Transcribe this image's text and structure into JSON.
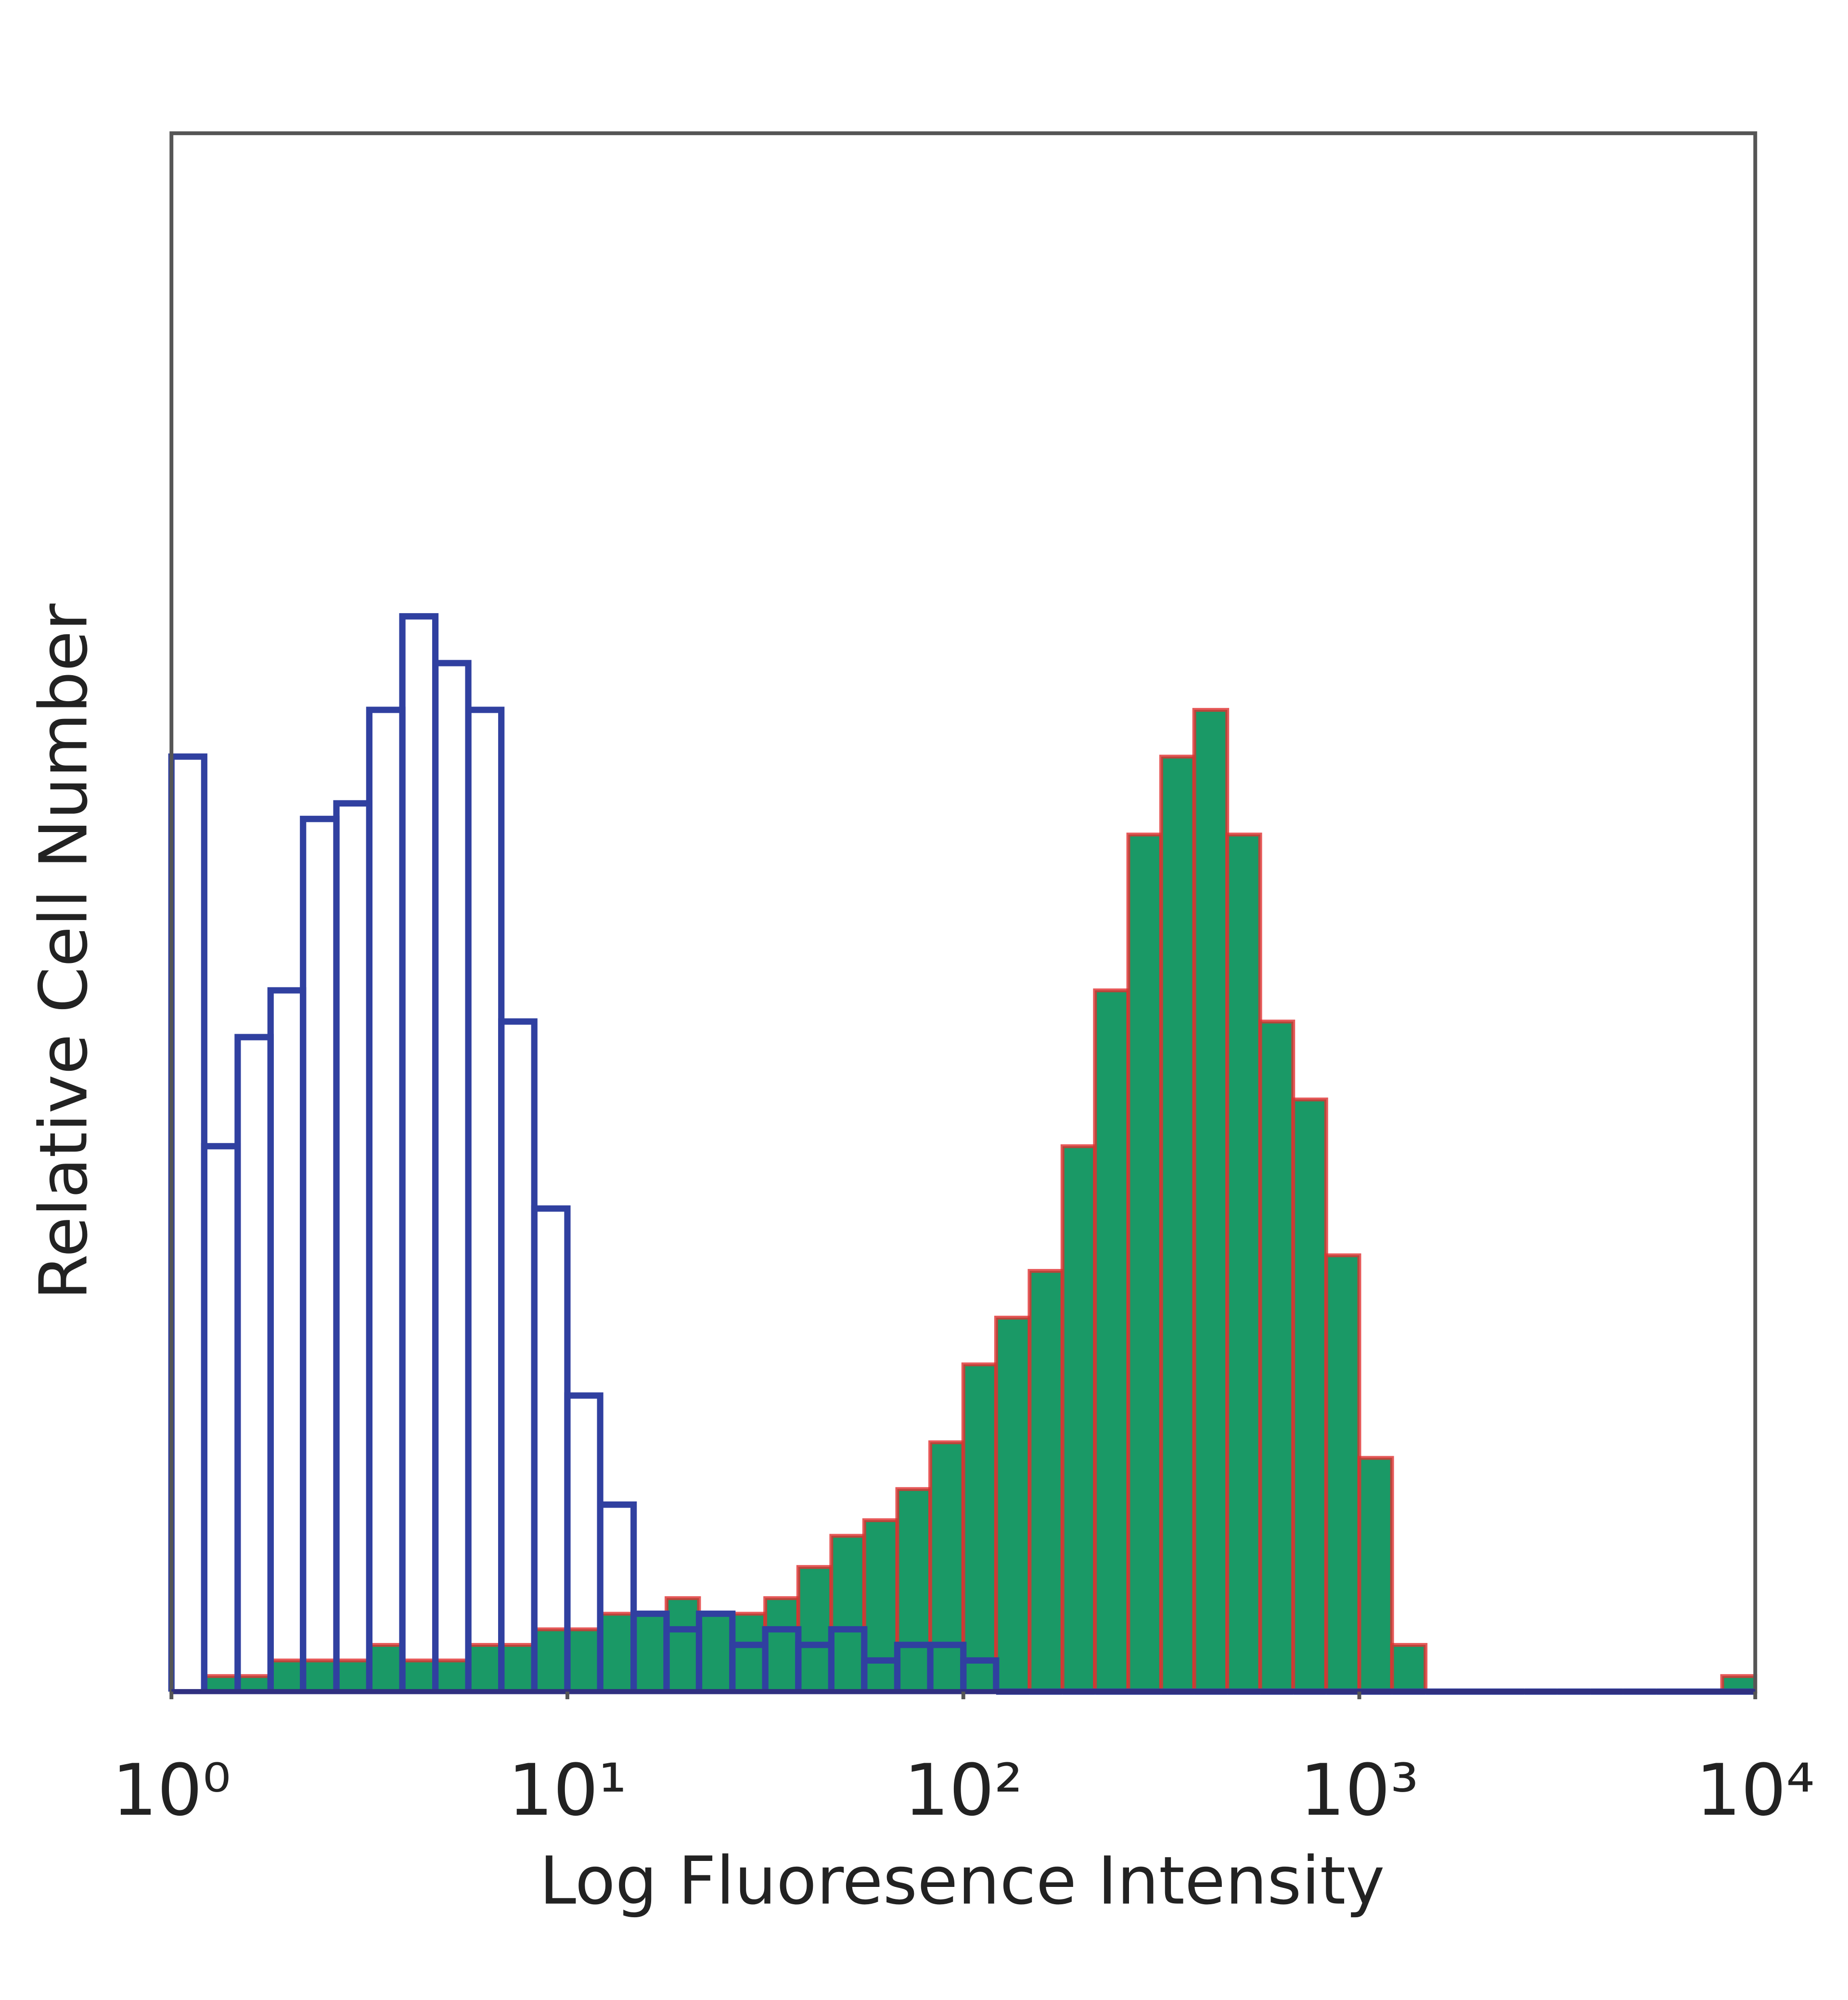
{
  "chart_data": {
    "type": "histogram",
    "xlabel": "Log Fluoresence Intensity",
    "ylabel": "Relative Cell Number",
    "xscale": "log",
    "xlim": [
      1,
      10000
    ],
    "xticks": [
      {
        "value": 1,
        "label": "10⁰"
      },
      {
        "value": 10,
        "label": "10¹"
      },
      {
        "value": 100,
        "label": "10²"
      },
      {
        "value": 1000,
        "label": "10³"
      },
      {
        "value": 10000,
        "label": "10⁴"
      }
    ],
    "ylim": [
      0,
      100
    ],
    "bins": [
      1,
      1.21,
      1.47,
      1.78,
      2.15,
      2.61,
      3.16,
      3.83,
      4.64,
      5.62,
      6.81,
      8.25,
      10,
      12.1,
      14.7,
      17.8,
      21.5,
      26.1,
      31.6,
      38.3,
      46.4,
      56.2,
      68.1,
      82.5,
      100,
      121,
      147,
      178,
      215,
      261,
      316,
      383,
      464,
      562,
      681,
      825,
      1000,
      1210,
      1470,
      1780,
      2150,
      2610,
      3160,
      3830,
      4640,
      5620,
      6810,
      8250,
      10000
    ],
    "series": [
      {
        "style": "filled",
        "color": "#1a9966",
        "edgecolor": "#e03030",
        "values": [
          0,
          1,
          1,
          2,
          2,
          2,
          3,
          2,
          2,
          3,
          3,
          4,
          4,
          5,
          5,
          6,
          5,
          5,
          6,
          8,
          10,
          11,
          13,
          16,
          21,
          24,
          27,
          35,
          45,
          55,
          60,
          63,
          55,
          43,
          38,
          28,
          15,
          3,
          0,
          0,
          0,
          0,
          0,
          0,
          0,
          0,
          0,
          1
        ]
      },
      {
        "style": "outline",
        "color": "#3040a0",
        "values": [
          60,
          35,
          42,
          45,
          56,
          57,
          63,
          69,
          66,
          63,
          43,
          31,
          19,
          12,
          5,
          4,
          5,
          3,
          4,
          3,
          4,
          2,
          3,
          3,
          2,
          0,
          0,
          0,
          0,
          0,
          0,
          0,
          0,
          0,
          0,
          0,
          0,
          0,
          0,
          0,
          0,
          0,
          0,
          0,
          0,
          0,
          0,
          0
        ]
      }
    ]
  }
}
